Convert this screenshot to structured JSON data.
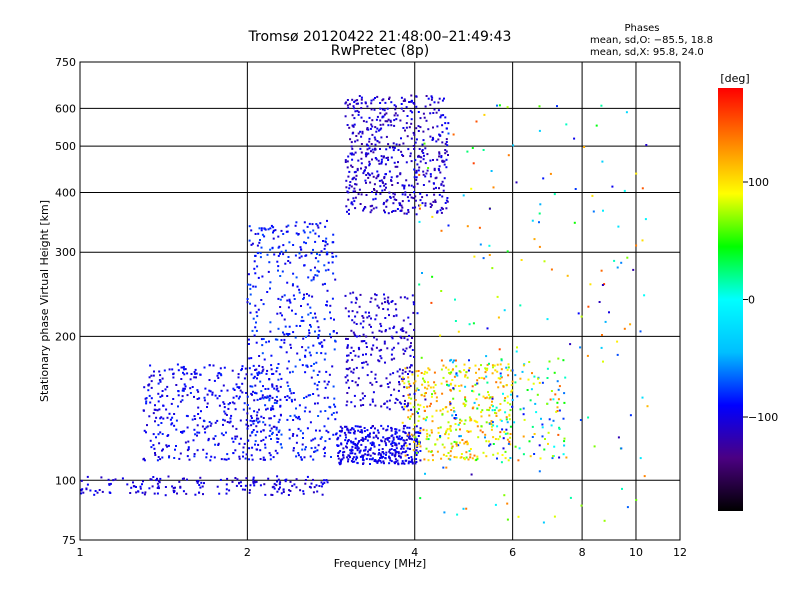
{
  "header": {
    "title_line1": "Tromsø 20120422 21:48:00–21:49:43",
    "title_line2": "RwPretec (8p)"
  },
  "stats": {
    "heading": "Phases",
    "line_o": "mean, sd,O: −85.5, 18.8",
    "line_x": "mean, sd,X:  95.8, 24.0"
  },
  "colorbar": {
    "unit_label": "[deg]",
    "ticks": [
      "100",
      "0",
      "−100"
    ],
    "tick_values": [
      100,
      0,
      -100
    ],
    "range": [
      -180,
      180
    ],
    "colors": [
      "#000000",
      "#4b0082",
      "#0000ff",
      "#00bfff",
      "#00ffff",
      "#00ff00",
      "#ffff00",
      "#ff8000",
      "#ff0000"
    ]
  },
  "chart_data": {
    "type": "scatter",
    "title": "Tromsø 20120422 21:48:00–21:49:43",
    "subtitle": "RwPretec (8p)",
    "xlabel": "Frequency [MHz]",
    "ylabel": "Stationary phase Virtual Height [km]",
    "xscale": "log",
    "yscale": "log",
    "xlim": [
      1,
      12
    ],
    "ylim": [
      75,
      750
    ],
    "x_ticks": [
      1,
      2,
      4,
      6,
      8,
      10,
      12
    ],
    "y_ticks": [
      75,
      100,
      200,
      300,
      400,
      500,
      600,
      750
    ],
    "grid": true,
    "clusters": [
      {
        "x": [
          1.0,
          2.8
        ],
        "y": [
          93,
          102
        ],
        "n": 180,
        "phase": [
          -115,
          -90
        ]
      },
      {
        "x": [
          1.3,
          2.3
        ],
        "y": [
          110,
          175
        ],
        "n": 420,
        "phase": [
          -110,
          -80
        ]
      },
      {
        "x": [
          2.0,
          2.9
        ],
        "y": [
          110,
          350
        ],
        "n": 520,
        "phase": [
          -105,
          -70
        ]
      },
      {
        "x": [
          2.9,
          4.1
        ],
        "y": [
          108,
          130
        ],
        "n": 380,
        "phase": [
          -110,
          -85
        ]
      },
      {
        "x": [
          3.0,
          4.0
        ],
        "y": [
          140,
          250
        ],
        "n": 260,
        "phase": [
          -120,
          -95
        ]
      },
      {
        "x": [
          3.0,
          4.6
        ],
        "y": [
          360,
          640
        ],
        "n": 560,
        "phase": [
          -125,
          -90
        ]
      },
      {
        "x": [
          3.8,
          6.0
        ],
        "y": [
          110,
          175
        ],
        "n": 320,
        "phase": [
          60,
          140
        ]
      },
      {
        "x": [
          4.6,
          7.5
        ],
        "y": [
          110,
          180
        ],
        "n": 180,
        "phase": [
          -110,
          150
        ]
      },
      {
        "x": [
          4.0,
          10.5
        ],
        "y": [
          80,
          620
        ],
        "n": 200,
        "phase": [
          -120,
          160
        ]
      }
    ]
  }
}
